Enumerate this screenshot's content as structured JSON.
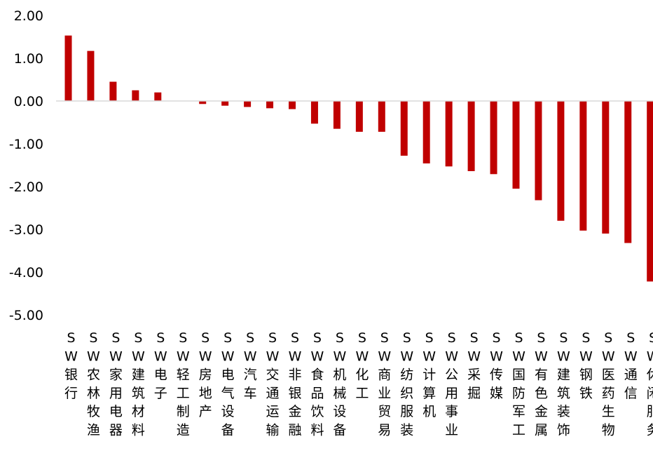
{
  "chart_data": {
    "type": "bar",
    "categories": [
      "SW银行",
      "SW农林牧渔",
      "SW家用电器",
      "SW建筑材料",
      "SW电子",
      "SW轻工制造",
      "SW房地产",
      "SW电气设备",
      "SW汽车",
      "SW交通运输",
      "SW非银金融",
      "SW食品饮料",
      "SW机械设备",
      "SW化工",
      "SW商业贸易",
      "SW纺织服装",
      "SW计算机",
      "SW公用事业",
      "SW采掘",
      "SW传媒",
      "SW国防军工",
      "SW有色金属",
      "SW建筑装饰",
      "SW钢铁",
      "SW医药生物",
      "SW通信",
      "SW休闲服务"
    ],
    "values": [
      1.53,
      1.17,
      0.45,
      0.25,
      0.2,
      0.0,
      -0.07,
      -0.11,
      -0.14,
      -0.17,
      -0.19,
      -0.53,
      -0.65,
      -0.72,
      -0.72,
      -1.28,
      -1.46,
      -1.53,
      -1.64,
      -1.71,
      -2.05,
      -2.32,
      -2.8,
      -3.03,
      -3.1,
      -3.32,
      -4.22
    ],
    "ylim": [
      -5,
      2
    ],
    "yticks": [
      2,
      1,
      0,
      -1,
      -2,
      -3,
      -4,
      -5
    ],
    "ytick_labels": [
      "2.00",
      "1.00",
      "0.00",
      "-1.00",
      "-2.00",
      "-3.00",
      "-4.00",
      "-5.00"
    ],
    "bar_color": "#C00000",
    "axis_color": "#D9D9D9",
    "grid": false,
    "legend": "none",
    "title": "",
    "xlabel": "",
    "ylabel": ""
  }
}
